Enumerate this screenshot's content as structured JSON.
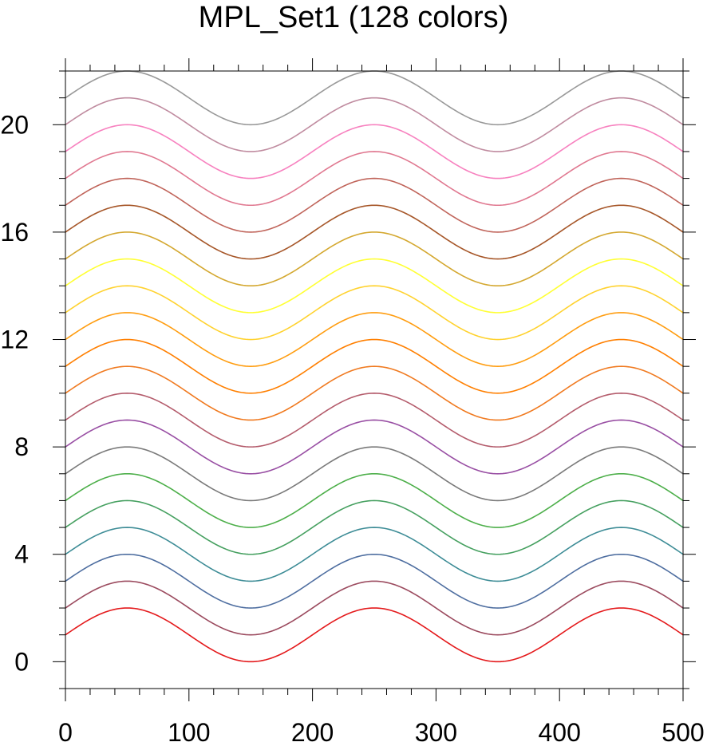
{
  "chart_data": {
    "type": "line",
    "title": "MPL_Set1 (128 colors)",
    "xlabel": "",
    "ylabel": "",
    "xlim": [
      0,
      500
    ],
    "ylim": [
      -1,
      22
    ],
    "x_ticks": [
      0,
      100,
      200,
      300,
      400,
      500
    ],
    "x_tick_labels": [
      "0",
      "100",
      "200",
      "300",
      "400",
      "500"
    ],
    "y_ticks": [
      0,
      4,
      8,
      12,
      16,
      20
    ],
    "y_tick_labels": [
      "0",
      "4",
      "8",
      "12",
      "16",
      "20"
    ],
    "curve_function": "y = offset + 1 + sin(2*pi*(x-0)/200)",
    "x_range": [
      0,
      500
    ],
    "grid": false,
    "series": [
      {
        "offset": 0,
        "color": "#e41a1c"
      },
      {
        "offset": 1,
        "color": "#9b4a5e"
      },
      {
        "offset": 2,
        "color": "#4e6ea0"
      },
      {
        "offset": 3,
        "color": "#3d8c96"
      },
      {
        "offset": 4,
        "color": "#46a060"
      },
      {
        "offset": 5,
        "color": "#4daf4a"
      },
      {
        "offset": 6,
        "color": "#7a7a7a"
      },
      {
        "offset": 7,
        "color": "#984ea3"
      },
      {
        "offset": 8,
        "color": "#b45c6c"
      },
      {
        "offset": 9,
        "color": "#f07a20"
      },
      {
        "offset": 10,
        "color": "#ff7f00"
      },
      {
        "offset": 11,
        "color": "#ff9d10"
      },
      {
        "offset": 12,
        "color": "#ffd22e"
      },
      {
        "offset": 13,
        "color": "#ffff33"
      },
      {
        "offset": 14,
        "color": "#d4a830"
      },
      {
        "offset": 15,
        "color": "#a65628"
      },
      {
        "offset": 16,
        "color": "#c0645a"
      },
      {
        "offset": 17,
        "color": "#e07890"
      },
      {
        "offset": 18,
        "color": "#f781bf"
      },
      {
        "offset": 19,
        "color": "#c08ca0"
      },
      {
        "offset": 20,
        "color": "#999999"
      }
    ]
  }
}
